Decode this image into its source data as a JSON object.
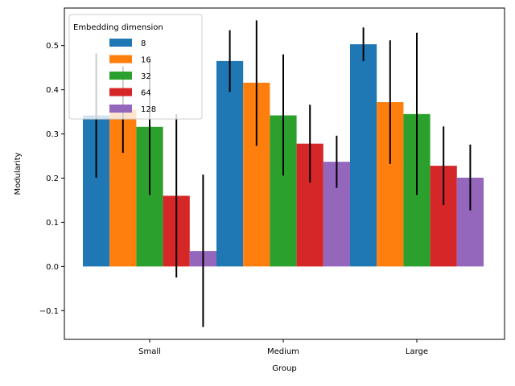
{
  "chart_data": {
    "type": "bar",
    "title": "",
    "xlabel": "Group",
    "ylabel": "Modularity",
    "categories": [
      "Small",
      "Medium",
      "Large"
    ],
    "ylim": [
      -0.165,
      0.585
    ],
    "yticks": [
      -0.1,
      0.0,
      0.1,
      0.2,
      0.3,
      0.4,
      0.5
    ],
    "ytick_labels": [
      "−0.1",
      "0.0",
      "0.1",
      "0.2",
      "0.3",
      "0.4",
      "0.5"
    ],
    "grid": false,
    "legend": {
      "title": "Embedding dimension",
      "placement": "top-left"
    },
    "series": [
      {
        "name": "8",
        "color": "#1f77b4",
        "values": [
          0.342,
          0.465,
          0.503
        ],
        "err_low": [
          0.201,
          0.395,
          0.465
        ],
        "err_high": [
          0.482,
          0.535,
          0.541
        ]
      },
      {
        "name": "16",
        "color": "#ff7f0e",
        "values": [
          0.355,
          0.416,
          0.372
        ],
        "err_low": [
          0.257,
          0.273,
          0.232
        ],
        "err_high": [
          0.453,
          0.557,
          0.512
        ]
      },
      {
        "name": "32",
        "color": "#2ca02c",
        "values": [
          0.316,
          0.342,
          0.345
        ],
        "err_low": [
          0.162,
          0.206,
          0.162
        ],
        "err_high": [
          0.47,
          0.48,
          0.529
        ]
      },
      {
        "name": "64",
        "color": "#d62728",
        "values": [
          0.16,
          0.278,
          0.228
        ],
        "err_low": [
          -0.025,
          0.19,
          0.139
        ],
        "err_high": [
          0.345,
          0.366,
          0.317
        ]
      },
      {
        "name": "128",
        "color": "#9467bd",
        "values": [
          0.035,
          0.237,
          0.201
        ],
        "err_low": [
          -0.137,
          0.178,
          0.127
        ],
        "err_high": [
          0.208,
          0.296,
          0.276
        ]
      }
    ]
  }
}
